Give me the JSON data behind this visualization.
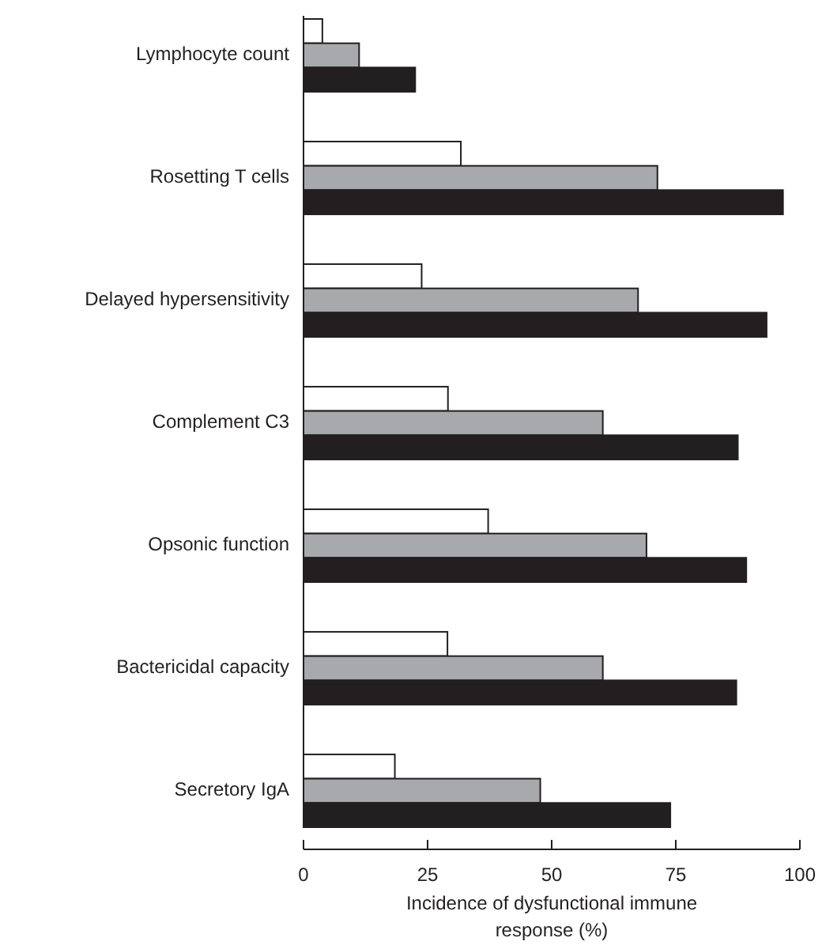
{
  "chart_data": {
    "type": "bar",
    "orientation": "horizontal",
    "xlabel": "Incidence of dysfunctional immune response (%)",
    "categories": [
      "Lymphocyte count",
      "Rosetting T cells",
      "Delayed hypersensitivity",
      "Complement C3",
      "Opsonic function",
      "Bactericidal capacity",
      "Secretory IgA"
    ],
    "series": [
      {
        "color": "#ffffff",
        "values": [
          3.8,
          31.7,
          23.8,
          29.1,
          37.2,
          29.0,
          18.4
        ]
      },
      {
        "color": "#a7a9ac",
        "values": [
          11.2,
          71.3,
          67.4,
          60.3,
          69.1,
          60.3,
          47.7
        ]
      },
      {
        "color": "#231f20",
        "values": [
          22.5,
          96.6,
          93.3,
          87.5,
          89.2,
          87.2,
          73.9
        ]
      }
    ],
    "xlim": [
      0,
      100
    ],
    "xticks": [
      0,
      25,
      50,
      75,
      100
    ],
    "grid": false
  }
}
